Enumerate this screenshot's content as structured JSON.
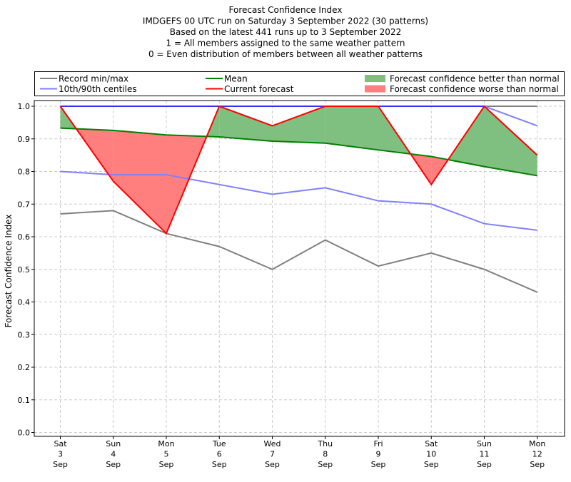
{
  "chart_data": {
    "type": "line",
    "title_lines": [
      "Forecast Confidence Index",
      "IMDGEFS 00 UTC run on Saturday 3 September 2022 (30 patterns)",
      "Based on the latest 441 runs up to 3 September 2022",
      "1 = All members assigned to the same weather pattern",
      "0 = Even distribution of members between all weather patterns"
    ],
    "ylabel": "Forecast Confidence Index",
    "ylim": [
      0,
      1
    ],
    "yticks": [
      "0.0",
      "0.1",
      "0.2",
      "0.3",
      "0.4",
      "0.5",
      "0.6",
      "0.7",
      "0.8",
      "0.9",
      "1.0"
    ],
    "grid": true,
    "legend_position": "top",
    "categories": [
      [
        "Sat",
        "3",
        "Sep"
      ],
      [
        "Sun",
        "4",
        "Sep"
      ],
      [
        "Mon",
        "5",
        "Sep"
      ],
      [
        "Tue",
        "6",
        "Sep"
      ],
      [
        "Wed",
        "7",
        "Sep"
      ],
      [
        "Thu",
        "8",
        "Sep"
      ],
      [
        "Fri",
        "9",
        "Sep"
      ],
      [
        "Sat",
        "10",
        "Sep"
      ],
      [
        "Sun",
        "11",
        "Sep"
      ],
      [
        "Mon",
        "12",
        "Sep"
      ]
    ],
    "legend": [
      {
        "label": "Record min/max",
        "kind": "line",
        "color": "#808080"
      },
      {
        "label": "Mean",
        "kind": "line",
        "color": "#008000"
      },
      {
        "label": "Forecast confidence better than normal",
        "kind": "patch",
        "color": "#7fbf7f"
      },
      {
        "label": "10th/90th centiles",
        "kind": "line",
        "color": "#7f7fff"
      },
      {
        "label": "Current forecast",
        "kind": "line",
        "color": "#ff0000"
      },
      {
        "label": "Forecast confidence worse than normal",
        "kind": "patch",
        "color": "#ff7f7f"
      }
    ],
    "series": {
      "record_min": [
        0.67,
        0.68,
        0.61,
        0.57,
        0.5,
        0.59,
        0.51,
        0.55,
        0.5,
        0.43
      ],
      "record_max": [
        1.0,
        1.0,
        1.0,
        1.0,
        1.0,
        1.0,
        1.0,
        1.0,
        1.0,
        1.0
      ],
      "p10": [
        0.8,
        0.79,
        0.79,
        0.76,
        0.73,
        0.75,
        0.71,
        0.7,
        0.64,
        0.62
      ],
      "p90": [
        1.0,
        1.0,
        1.0,
        1.0,
        1.0,
        1.0,
        1.0,
        1.0,
        1.0,
        0.94
      ],
      "mean": [
        0.933,
        0.926,
        0.912,
        0.906,
        0.893,
        0.887,
        0.866,
        0.846,
        0.815,
        0.787
      ],
      "current": [
        1.0,
        0.77,
        0.61,
        1.0,
        0.94,
        1.0,
        1.0,
        0.76,
        1.0,
        0.85
      ]
    },
    "colors": {
      "record": "#808080",
      "centile": "#7f7fff",
      "centile_top": "#3333ee",
      "mean": "#008000",
      "current": "#ff0000",
      "better_fill": "#7fbf7f",
      "worse_fill": "#ff7f7f",
      "grid": "#cccccc"
    }
  }
}
